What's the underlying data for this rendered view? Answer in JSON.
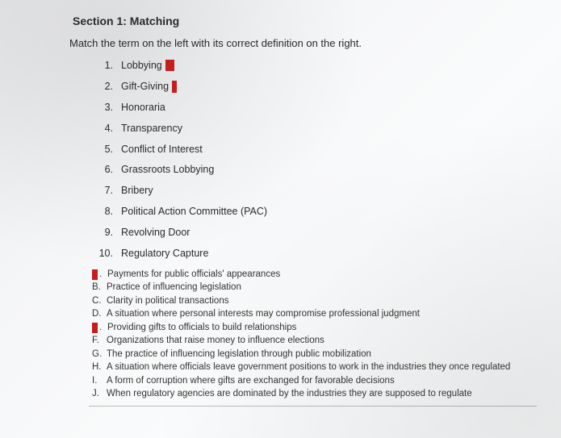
{
  "section": {
    "title": "Section 1: Matching",
    "instruction": "Match the term on the left with its correct definition on the right."
  },
  "terms": [
    {
      "num": "1.",
      "label": "Lobbying",
      "mark": "red-square"
    },
    {
      "num": "2.",
      "label": "Gift-Giving",
      "mark": "red-narrow"
    },
    {
      "num": "3.",
      "label": "Honoraria",
      "mark": null
    },
    {
      "num": "4.",
      "label": "Transparency",
      "mark": null
    },
    {
      "num": "5.",
      "label": "Conflict of Interest",
      "mark": null
    },
    {
      "num": "6.",
      "label": "Grassroots Lobbying",
      "mark": null
    },
    {
      "num": "7.",
      "label": "Bribery",
      "mark": null
    },
    {
      "num": "8.",
      "label": "Political Action Committee (PAC)",
      "mark": null
    },
    {
      "num": "9.",
      "label": "Revolving Door",
      "mark": null
    },
    {
      "num": "10.",
      "label": "Regulatory Capture",
      "mark": null
    }
  ],
  "definitions": [
    {
      "letter": "",
      "red": true,
      "dot": ".",
      "text": "Payments for public officials' appearances"
    },
    {
      "letter": "B.",
      "red": false,
      "text": "Practice of influencing legislation"
    },
    {
      "letter": "C.",
      "red": false,
      "text": "Clarity in political transactions"
    },
    {
      "letter": "D.",
      "red": false,
      "text": "A situation where personal interests may compromise professional judgment"
    },
    {
      "letter": "",
      "red": true,
      "dot": ".",
      "text": "Providing gifts to officials to build relationships"
    },
    {
      "letter": "F.",
      "red": false,
      "text": "Organizations that raise money to influence elections"
    },
    {
      "letter": "G.",
      "red": false,
      "text": "The practice of influencing legislation through public mobilization"
    },
    {
      "letter": "H.",
      "red": false,
      "text": "A situation where officials leave government positions to work in the industries they once regulated"
    },
    {
      "letter": "I.",
      "red": false,
      "text": "A form of corruption where gifts are exchanged for favorable decisions"
    },
    {
      "letter": "J.",
      "red": false,
      "text": "When regulatory agencies are dominated by the industries they are supposed to regulate"
    }
  ],
  "colors": {
    "redaction": "#c41e1e",
    "text": "#2a2a2a",
    "bg_gradient_start": "#e8e9ea",
    "bg_gradient_end": "#f0f1f2"
  }
}
